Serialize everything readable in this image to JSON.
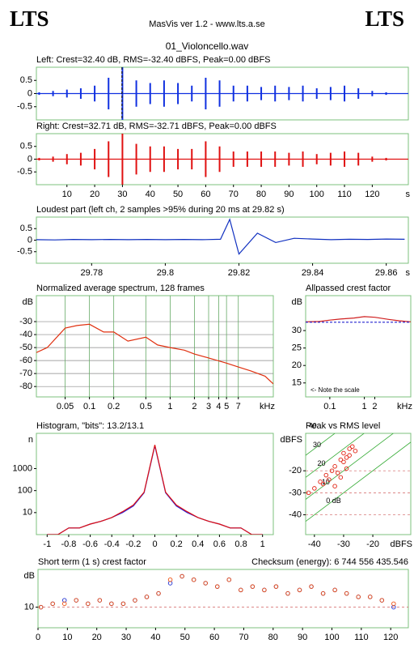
{
  "header": {
    "left_logo": "LTS",
    "title": "MasVis ver 1.2 - www.lts.a.se",
    "right_logo": "LTS",
    "file": "01_Violoncello.wav"
  },
  "chart_data": [
    {
      "type": "waveform",
      "title": "Left: Crest=32.40 dB, RMS=-32.40 dBFS, Peak=0.00 dBFS",
      "color": "#1030e0",
      "x": [
        0,
        5,
        10,
        15,
        20,
        25,
        30,
        35,
        40,
        45,
        50,
        55,
        60,
        65,
        70,
        75,
        80,
        85,
        90,
        95,
        100,
        105,
        110,
        115,
        120,
        125
      ],
      "values": [
        0.05,
        0.1,
        0.15,
        0.2,
        0.3,
        0.6,
        1.0,
        0.5,
        0.4,
        0.5,
        0.4,
        0.3,
        0.6,
        0.5,
        0.3,
        0.3,
        0.25,
        0.3,
        0.25,
        0.3,
        0.2,
        0.25,
        0.3,
        0.2,
        0.1,
        0.05
      ],
      "marker": 29.82,
      "xlim": [
        -1,
        133
      ],
      "ylim": [
        -1,
        1
      ],
      "yticks": [
        0.5,
        0,
        -0.5
      ]
    },
    {
      "type": "waveform",
      "title": "Right: Crest=32.71 dB, RMS=-32.71 dBFS, Peak=0.00 dBFS",
      "color": "#e01010",
      "x": [
        0,
        5,
        10,
        15,
        20,
        25,
        30,
        35,
        40,
        45,
        50,
        55,
        60,
        65,
        70,
        75,
        80,
        85,
        90,
        95,
        100,
        105,
        110,
        115,
        120,
        125
      ],
      "values": [
        0.05,
        0.1,
        0.2,
        0.25,
        0.4,
        0.7,
        1.0,
        0.6,
        0.5,
        0.5,
        0.4,
        0.4,
        0.7,
        0.5,
        0.3,
        0.3,
        0.3,
        0.3,
        0.25,
        0.3,
        0.2,
        0.25,
        0.3,
        0.25,
        0.1,
        0.05
      ],
      "xlim": [
        -1,
        133
      ],
      "ylim": [
        -1,
        1
      ],
      "yticks": [
        0.5,
        0,
        -0.5
      ],
      "xticks": [
        10,
        20,
        30,
        40,
        50,
        60,
        70,
        80,
        90,
        100,
        110,
        120
      ],
      "xlabel": "s"
    },
    {
      "type": "line",
      "title": "Loudest part (left  ch, 2 samples >95% during 20 ms at 29.82 s)",
      "x": [
        29.765,
        29.77,
        29.775,
        29.78,
        29.785,
        29.79,
        29.795,
        29.8,
        29.805,
        29.81,
        29.815,
        29.8175,
        29.82,
        29.825,
        29.83,
        29.835,
        29.84,
        29.845,
        29.85,
        29.855,
        29.86,
        29.865
      ],
      "series": [
        {
          "color": "#1030c0",
          "values": [
            0.02,
            0.01,
            0.03,
            0.02,
            0.03,
            0.02,
            0.03,
            0.02,
            0.03,
            0.02,
            0.04,
            0.9,
            -0.6,
            0.3,
            -0.1,
            0.08,
            0.05,
            0.02,
            0.04,
            0.03,
            0.05,
            0.04
          ]
        }
      ],
      "xlim": [
        29.765,
        29.866
      ],
      "ylim": [
        -1,
        1
      ],
      "yticks": [
        0.5,
        0,
        -0.5
      ],
      "xticks": [
        29.78,
        29.8,
        29.82,
        29.84,
        29.86
      ],
      "xlabel": "s"
    },
    {
      "type": "line",
      "title": "Normalized average spectrum, 128 frames",
      "ylabel": "dB",
      "xscale": "log",
      "grid": true,
      "x": [
        0.02,
        0.03,
        0.05,
        0.07,
        0.1,
        0.15,
        0.2,
        0.3,
        0.5,
        0.7,
        1,
        1.5,
        2,
        3,
        5,
        7,
        10,
        15,
        19
      ],
      "series": [
        {
          "color": "#e03010",
          "values": [
            -55,
            -50,
            -35,
            -33,
            -32,
            -38,
            -38,
            -45,
            -42,
            -48,
            -50,
            -52,
            -55,
            -58,
            -62,
            -65,
            -68,
            -72,
            -78
          ]
        }
      ],
      "xlim": [
        0.022,
        19
      ],
      "ylim": [
        -88,
        -10
      ],
      "yticks": [
        -30,
        -40,
        -50,
        -60,
        -70,
        -80
      ],
      "xticks": [
        0.05,
        0.1,
        0.2,
        0.5,
        1,
        2,
        3,
        4,
        5,
        7
      ],
      "xlabel": "kHz"
    },
    {
      "type": "line",
      "title": "Allpassed crest factor",
      "ylabel": "dB",
      "xscale": "log",
      "annotation": "<- Note the scale",
      "annotation_position": "bottom-left",
      "x": [
        0.02,
        0.05,
        0.1,
        0.2,
        0.5,
        1,
        2,
        5,
        10,
        22
      ],
      "series": [
        {
          "color": "#d02020",
          "values": [
            32.5,
            32.6,
            33,
            33.3,
            33.6,
            34,
            33.8,
            33.2,
            32.8,
            32.5
          ]
        },
        {
          "color": "#2020d0",
          "dashed": true,
          "values": [
            32.4,
            32.4,
            32.4,
            32.4,
            32.4,
            32.4,
            32.4,
            32.4,
            32.4,
            32.4
          ]
        }
      ],
      "xlim": [
        0.02,
        22
      ],
      "ylim": [
        11,
        40
      ],
      "yticks": [
        30,
        25,
        20,
        15
      ],
      "xticks": [
        0.1,
        1,
        2
      ],
      "xlabel": "kHz"
    },
    {
      "type": "line",
      "title": "Histogram, \"bits\": 13.2/13.1",
      "ylabel": "n",
      "yscale": "log",
      "x": [
        -1,
        -0.9,
        -0.8,
        -0.7,
        -0.6,
        -0.5,
        -0.4,
        -0.3,
        -0.2,
        -0.1,
        0,
        0.1,
        0.2,
        0.3,
        0.4,
        0.5,
        0.6,
        0.7,
        0.8,
        0.9,
        1
      ],
      "series": [
        {
          "color": "#2020e0",
          "values": [
            1,
            1,
            2,
            2,
            3,
            4,
            6,
            10,
            20,
            80,
            11000,
            80,
            20,
            10,
            6,
            4,
            3,
            2,
            2,
            1,
            1
          ]
        },
        {
          "color": "#e01010",
          "values": [
            1,
            1,
            2,
            2,
            3,
            4,
            6,
            11,
            22,
            85,
            12000,
            85,
            22,
            11,
            6,
            4,
            3,
            2,
            2,
            1,
            1
          ]
        }
      ],
      "xlim": [
        -1.1,
        1.1
      ],
      "ylim": [
        1,
        40000
      ],
      "yticks": [
        1000,
        100,
        10
      ],
      "xticks": [
        -1,
        -0.8,
        -0.6,
        -0.4,
        -0.2,
        0,
        0.2,
        0.4,
        0.6,
        0.8,
        1
      ]
    },
    {
      "type": "scatter",
      "title": "Peak vs RMS level",
      "ylabel": "dBFS",
      "xlabel": "dBFS",
      "crest_lines": [
        40,
        30,
        20,
        10,
        {
          "value": 0,
          "label": "0 dB"
        }
      ],
      "series": [
        {
          "color": "#e02010",
          "x": [
            -42,
            -40,
            -38,
            -37,
            -36,
            -35,
            -34,
            -33,
            -32,
            -31,
            -30,
            -30,
            -29,
            -28,
            -28,
            -27,
            -26,
            -33,
            -31,
            -29
          ],
          "values": [
            -30,
            -28,
            -25,
            -26,
            -22,
            -24,
            -20,
            -18,
            -21,
            -15,
            -16,
            -12,
            -14,
            -10,
            -13,
            -9,
            -11,
            -27,
            -23,
            -19
          ]
        }
      ],
      "xlim": [
        -43,
        -7
      ],
      "ylim": [
        -49,
        -3
      ],
      "yticks": [
        -20,
        -30,
        -40
      ],
      "xticks": [
        -40,
        -30,
        -20
      ]
    },
    {
      "type": "scatter",
      "title": "Short term (1 s) crest factor",
      "ylabel": "dB",
      "annotation": "Checksum (energy):   6 744 556 435.546",
      "annotation_position": "top-right",
      "x": [
        1,
        5,
        9,
        13,
        17,
        21,
        25,
        29,
        33,
        37,
        41,
        45,
        49,
        53,
        57,
        61,
        65,
        69,
        73,
        77,
        81,
        85,
        89,
        93,
        97,
        101,
        105,
        109,
        113,
        117,
        121
      ],
      "series": [
        {
          "color": "#2030d0",
          "values": [
            10,
            11,
            12,
            12,
            11,
            12,
            11,
            11,
            12,
            13,
            14,
            17,
            19,
            18,
            17,
            16,
            18,
            15,
            16,
            15,
            16,
            14,
            15,
            16,
            14,
            15,
            14,
            13,
            13,
            12,
            10
          ]
        },
        {
          "color": "#f05010",
          "values": [
            10,
            11,
            11,
            12,
            11,
            12,
            11,
            11,
            12,
            13,
            14,
            18,
            19,
            18,
            17,
            16,
            18,
            15,
            16,
            15,
            16,
            14,
            15,
            16,
            14,
            15,
            14,
            13,
            13,
            12,
            11
          ]
        }
      ],
      "xlim": [
        0,
        126
      ],
      "ylim": [
        4,
        21
      ],
      "yticks": [
        10
      ],
      "xticks": [
        0,
        10,
        20,
        30,
        40,
        50,
        60,
        70,
        80,
        90,
        100,
        110,
        120
      ]
    }
  ]
}
